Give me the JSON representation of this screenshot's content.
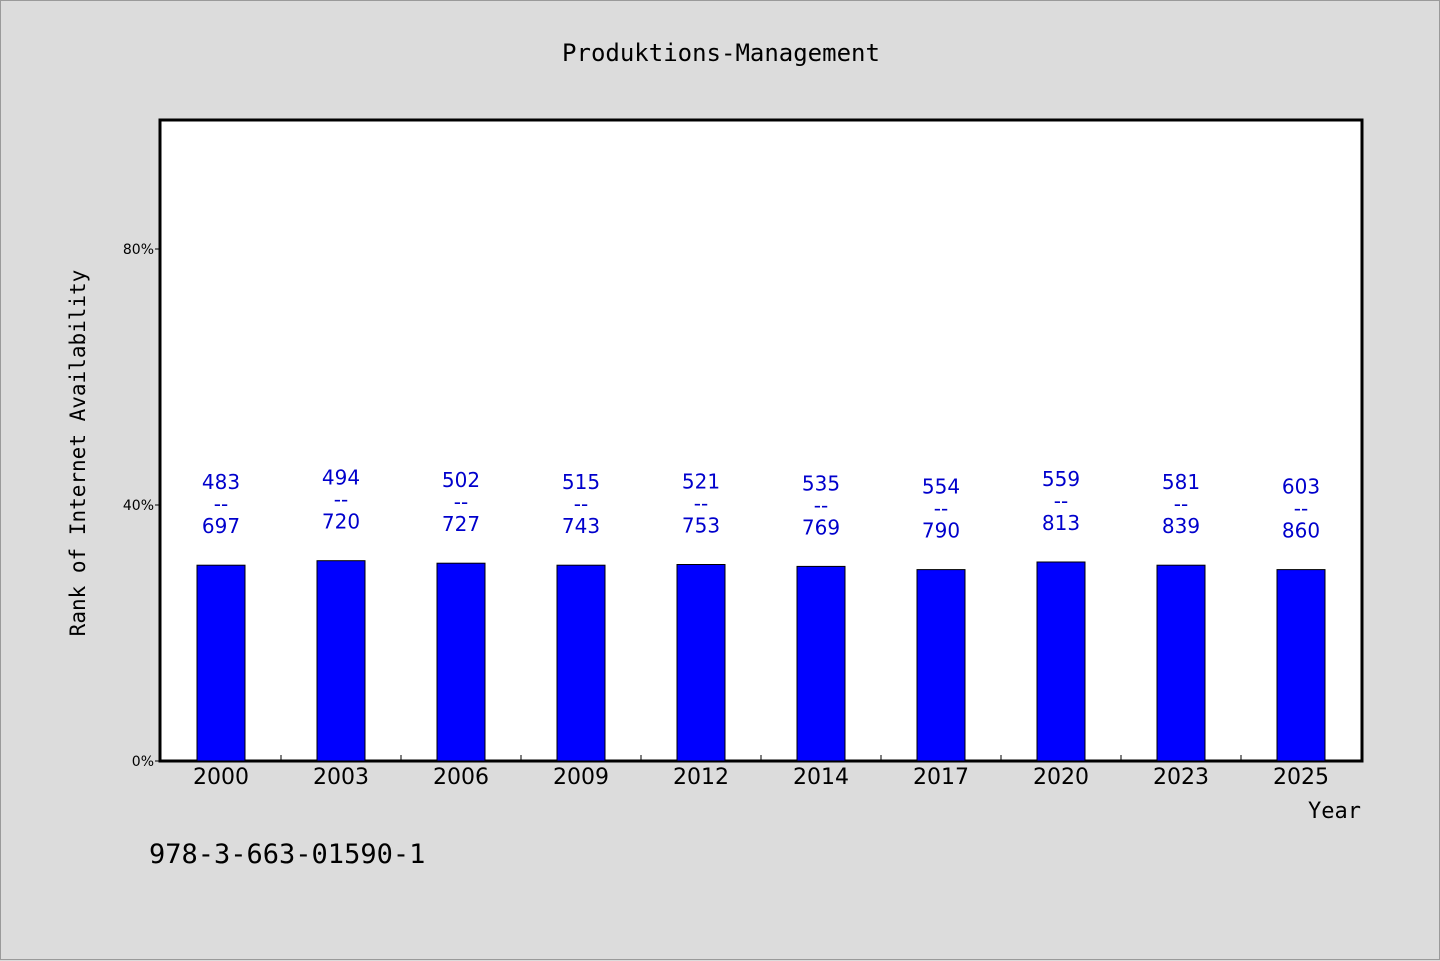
{
  "chart_data": {
    "type": "bar",
    "title": "Produktions-Management",
    "xlabel": "Year",
    "ylabel": "Rank of Internet Availability",
    "footnote": "978-3-663-01590-1",
    "categories": [
      "2000",
      "2003",
      "2006",
      "2009",
      "2012",
      "2014",
      "2017",
      "2020",
      "2023",
      "2025"
    ],
    "values": [
      0.306,
      0.313,
      0.309,
      0.306,
      0.307,
      0.304,
      0.299,
      0.311,
      0.306,
      0.299
    ],
    "value_format": "percent",
    "bar_labels": [
      {
        "top": "483",
        "sep": "--",
        "bottom": "697"
      },
      {
        "top": "494",
        "sep": "--",
        "bottom": "720"
      },
      {
        "top": "502",
        "sep": "--",
        "bottom": "727"
      },
      {
        "top": "515",
        "sep": "--",
        "bottom": "743"
      },
      {
        "top": "521",
        "sep": "--",
        "bottom": "753"
      },
      {
        "top": "535",
        "sep": "--",
        "bottom": "769"
      },
      {
        "top": "554",
        "sep": "--",
        "bottom": "790"
      },
      {
        "top": "559",
        "sep": "--",
        "bottom": "813"
      },
      {
        "top": "581",
        "sep": "--",
        "bottom": "839"
      },
      {
        "top": "603",
        "sep": "--",
        "bottom": "860"
      }
    ],
    "ylim": [
      0,
      1.0
    ],
    "yticks": [
      {
        "value": 0,
        "label": "0%"
      },
      {
        "value": 0.4,
        "label": "40%"
      },
      {
        "value": 0.8,
        "label": "80%"
      }
    ],
    "grid": false,
    "legend": "none",
    "colors": {
      "bar": "#0000ff",
      "bar_label": "#0000cc",
      "background": "#dcdcdc",
      "plot_background": "#ffffff",
      "axis": "#000000"
    }
  }
}
